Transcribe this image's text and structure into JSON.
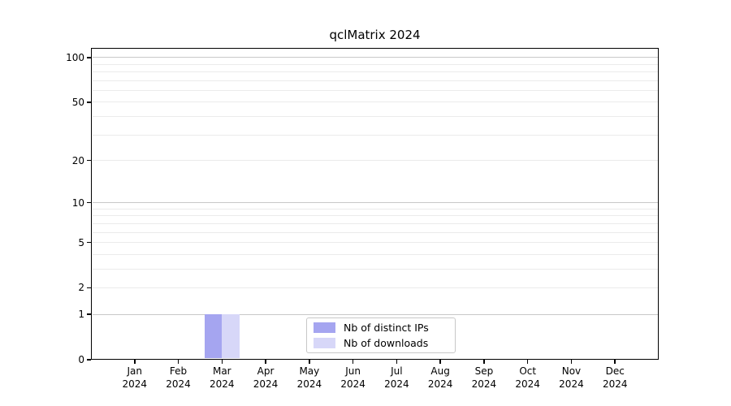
{
  "figure": {
    "background": "#ffffff"
  },
  "chart_data": {
    "type": "bar",
    "title": "qclMatrix 2024",
    "xlabel": "",
    "ylabel": "",
    "categories": [
      "Jan",
      "Feb",
      "Mar",
      "Apr",
      "May",
      "Jun",
      "Jul",
      "Aug",
      "Sep",
      "Oct",
      "Nov",
      "Dec"
    ],
    "x_tick_year": "2024",
    "series": [
      {
        "name": "Nb of distinct IPs",
        "color": "#a5a5f0",
        "values": [
          0,
          0,
          1,
          0,
          0,
          0,
          0,
          0,
          0,
          0,
          0,
          0
        ]
      },
      {
        "name": "Nb of downloads",
        "color": "#d7d7f8",
        "values": [
          0,
          0,
          1,
          0,
          0,
          0,
          0,
          0,
          0,
          0,
          0,
          0
        ]
      }
    ],
    "yscale": "log1p",
    "ylim": [
      0,
      116
    ],
    "y_tick_labels": [
      0,
      1,
      2,
      5,
      10,
      20,
      50,
      100
    ],
    "y_major_gridlines": [
      1,
      10,
      100
    ],
    "y_minor_gridlines": [
      2,
      3,
      4,
      5,
      6,
      7,
      8,
      9,
      20,
      30,
      40,
      50,
      60,
      70,
      80,
      90
    ],
    "grid": true,
    "legend_position": "bottom-center",
    "colors": {
      "major_grid": "#c8c8c8",
      "minor_grid": "#ebebeb",
      "spine": "#000000",
      "tick": "#000000",
      "text": "#000000"
    }
  }
}
